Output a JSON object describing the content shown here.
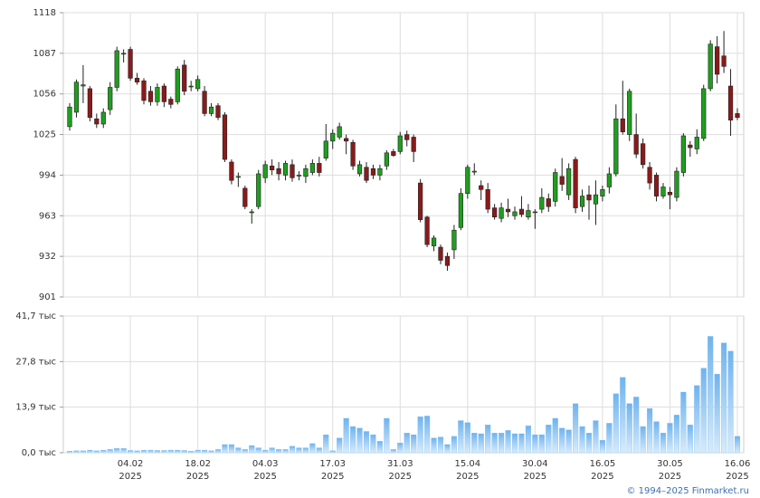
{
  "chart_data": [
    {
      "type": "candlestick",
      "categories": [
        null,
        null,
        null,
        null,
        null,
        null,
        null,
        null,
        null,
        "04.02",
        null,
        null,
        null,
        null,
        null,
        null,
        null,
        null,
        null,
        "18.02",
        null,
        null,
        null,
        null,
        null,
        null,
        null,
        null,
        null,
        "04.03",
        null,
        null,
        null,
        null,
        null,
        null,
        null,
        null,
        null,
        "17.03",
        null,
        null,
        null,
        null,
        null,
        null,
        null,
        null,
        null,
        "31.03",
        null,
        null,
        null,
        null,
        null,
        null,
        null,
        null,
        null,
        "15.04",
        null,
        null,
        null,
        null,
        null,
        null,
        null,
        null,
        null,
        "30.04",
        null,
        null,
        null,
        null,
        null,
        null,
        null,
        null,
        null,
        "16.05",
        null,
        null,
        null,
        null,
        null,
        null,
        null,
        null,
        null,
        "30.05",
        null,
        null,
        null,
        null,
        null,
        null,
        null,
        null,
        null,
        "16.06"
      ],
      "x_sublabel": "2025",
      "open": [
        1031,
        1042,
        1062,
        1060,
        1037,
        1033,
        1044,
        1061,
        1087,
        1090,
        1068,
        1066,
        1058,
        1050,
        1062,
        1052,
        1050,
        1078,
        1062,
        1060,
        1058,
        1041,
        1047,
        1040,
        1004,
        993,
        984,
        966,
        970,
        992,
        1001,
        999,
        994,
        1002,
        994,
        993,
        996,
        1003,
        1007,
        1020,
        1023,
        1022,
        1019,
        995,
        1000,
        999,
        994,
        1001,
        1012,
        1012,
        1025,
        1023,
        988,
        962,
        940,
        939,
        932,
        937,
        954,
        980,
        997,
        986,
        983,
        969,
        961,
        968,
        963,
        968,
        962,
        966,
        968,
        976,
        974,
        993,
        979,
        1006,
        970,
        979,
        972,
        978,
        985,
        995,
        1037,
        1025,
        1025,
        1018,
        1000,
        994,
        978,
        981,
        977,
        996,
        1017,
        1014,
        1022,
        1060,
        1092,
        1085,
        1062,
        1041
      ],
      "high": [
        1049,
        1067,
        1078,
        1062,
        1041,
        1045,
        1065,
        1092,
        1090,
        1092,
        1072,
        1068,
        1062,
        1064,
        1064,
        1054,
        1077,
        1082,
        1066,
        1070,
        1062,
        1049,
        1049,
        1042,
        1006,
        996,
        986,
        968,
        998,
        1005,
        1006,
        1004,
        1005,
        1006,
        997,
        1002,
        1006,
        1008,
        1033,
        1029,
        1034,
        1025,
        1021,
        1005,
        1004,
        1002,
        1002,
        1013,
        1014,
        1027,
        1028,
        1025,
        991,
        963,
        948,
        941,
        935,
        956,
        984,
        1002,
        1003,
        990,
        988,
        972,
        973,
        976,
        970,
        978,
        972,
        968,
        984,
        980,
        999,
        1007,
        1003,
        1008,
        983,
        986,
        990,
        986,
        1000,
        1048,
        1066,
        1060,
        1041,
        1022,
        1004,
        996,
        988,
        985,
        1000,
        1026,
        1020,
        1029,
        1063,
        1097,
        1100,
        1104,
        1075,
        1045
      ],
      "low": [
        1028,
        1038,
        1049,
        1035,
        1030,
        1030,
        1040,
        1058,
        1080,
        1066,
        1063,
        1048,
        1047,
        1047,
        1046,
        1045,
        1048,
        1055,
        1058,
        1058,
        1039,
        1039,
        1036,
        1004,
        987,
        985,
        968,
        957,
        968,
        988,
        994,
        990,
        990,
        989,
        990,
        988,
        994,
        993,
        1005,
        1014,
        1021,
        1010,
        998,
        993,
        988,
        991,
        990,
        998,
        1008,
        1010,
        1016,
        1004,
        958,
        939,
        936,
        926,
        921,
        930,
        952,
        976,
        994,
        975,
        965,
        960,
        958,
        962,
        960,
        962,
        960,
        953,
        965,
        966,
        970,
        982,
        975,
        965,
        966,
        960,
        956,
        974,
        980,
        993,
        1025,
        1020,
        1007,
        999,
        983,
        974,
        976,
        968,
        974,
        993,
        1008,
        1010,
        1020,
        1058,
        1064,
        1072,
        1024,
        1036
      ],
      "close": [
        1046,
        1065,
        1063,
        1038,
        1033,
        1042,
        1061,
        1089,
        1087,
        1068,
        1065,
        1051,
        1050,
        1061,
        1050,
        1048,
        1075,
        1058,
        1062,
        1067,
        1041,
        1046,
        1038,
        1006,
        990,
        993,
        970,
        966,
        995,
        1002,
        998,
        995,
        1003,
        992,
        994,
        999,
        1003,
        996,
        1020,
        1026,
        1031,
        1020,
        1001,
        1002,
        990,
        994,
        999,
        1011,
        1009,
        1024,
        1021,
        1012,
        960,
        941,
        946,
        929,
        925,
        952,
        980,
        1000,
        997,
        983,
        968,
        962,
        969,
        966,
        966,
        964,
        967,
        966,
        977,
        970,
        996,
        987,
        999,
        969,
        978,
        975,
        979,
        983,
        995,
        1037,
        1027,
        1058,
        1010,
        1002,
        988,
        978,
        985,
        979,
        997,
        1024,
        1015,
        1023,
        1060,
        1094,
        1071,
        1077,
        1036,
        1038
      ],
      "up_color": "#1f9e1f",
      "down_color": "#8b1a1a",
      "ylim": [
        901,
        1118
      ],
      "yticks": [
        901,
        932,
        963,
        994,
        1025,
        1056,
        1087,
        1118
      ],
      "grid": true
    },
    {
      "type": "bar",
      "values": [
        0.5,
        0.6,
        0.6,
        0.8,
        0.6,
        0.8,
        1,
        1.3,
        1.3,
        0.7,
        0.6,
        0.8,
        0.8,
        0.7,
        0.7,
        0.8,
        0.8,
        0.7,
        0.5,
        0.8,
        0.8,
        0.6,
        1,
        2.5,
        2.5,
        1.5,
        1,
        2.2,
        1.5,
        0.8,
        1.5,
        1,
        1,
        2,
        1.5,
        1.5,
        2.8,
        1.5,
        5.5,
        0.6,
        4.5,
        10.5,
        8,
        7.5,
        6.5,
        5.5,
        3.5,
        10.5,
        1,
        3,
        6,
        5.5,
        11,
        11.2,
        4.5,
        4.8,
        2.5,
        5,
        9.8,
        9.2,
        6,
        5.8,
        8.5,
        6,
        6,
        6.8,
        5.8,
        5.8,
        8.2,
        5.5,
        5.5,
        8.5,
        10.5,
        7.5,
        7,
        15,
        8,
        6,
        9.8,
        3.8,
        9,
        18,
        23,
        15,
        17,
        8,
        13.5,
        9.5,
        6,
        9,
        11.5,
        18.5,
        8.5,
        20.5,
        25.8,
        35.5,
        24,
        33.5,
        31,
        5
      ],
      "color": "#7dbcef",
      "ylim": [
        0,
        41.7
      ],
      "yticks": [
        {
          "value": 0,
          "label": "0,0 тыс"
        },
        {
          "value": 13.9,
          "label": "13,9 тыс"
        },
        {
          "value": 27.8,
          "label": "27,8 тыс"
        },
        {
          "value": 41.7,
          "label": "41,7 тыс"
        }
      ],
      "grid": true
    }
  ],
  "footer": "© 1994–2025 Finmarket.ru"
}
